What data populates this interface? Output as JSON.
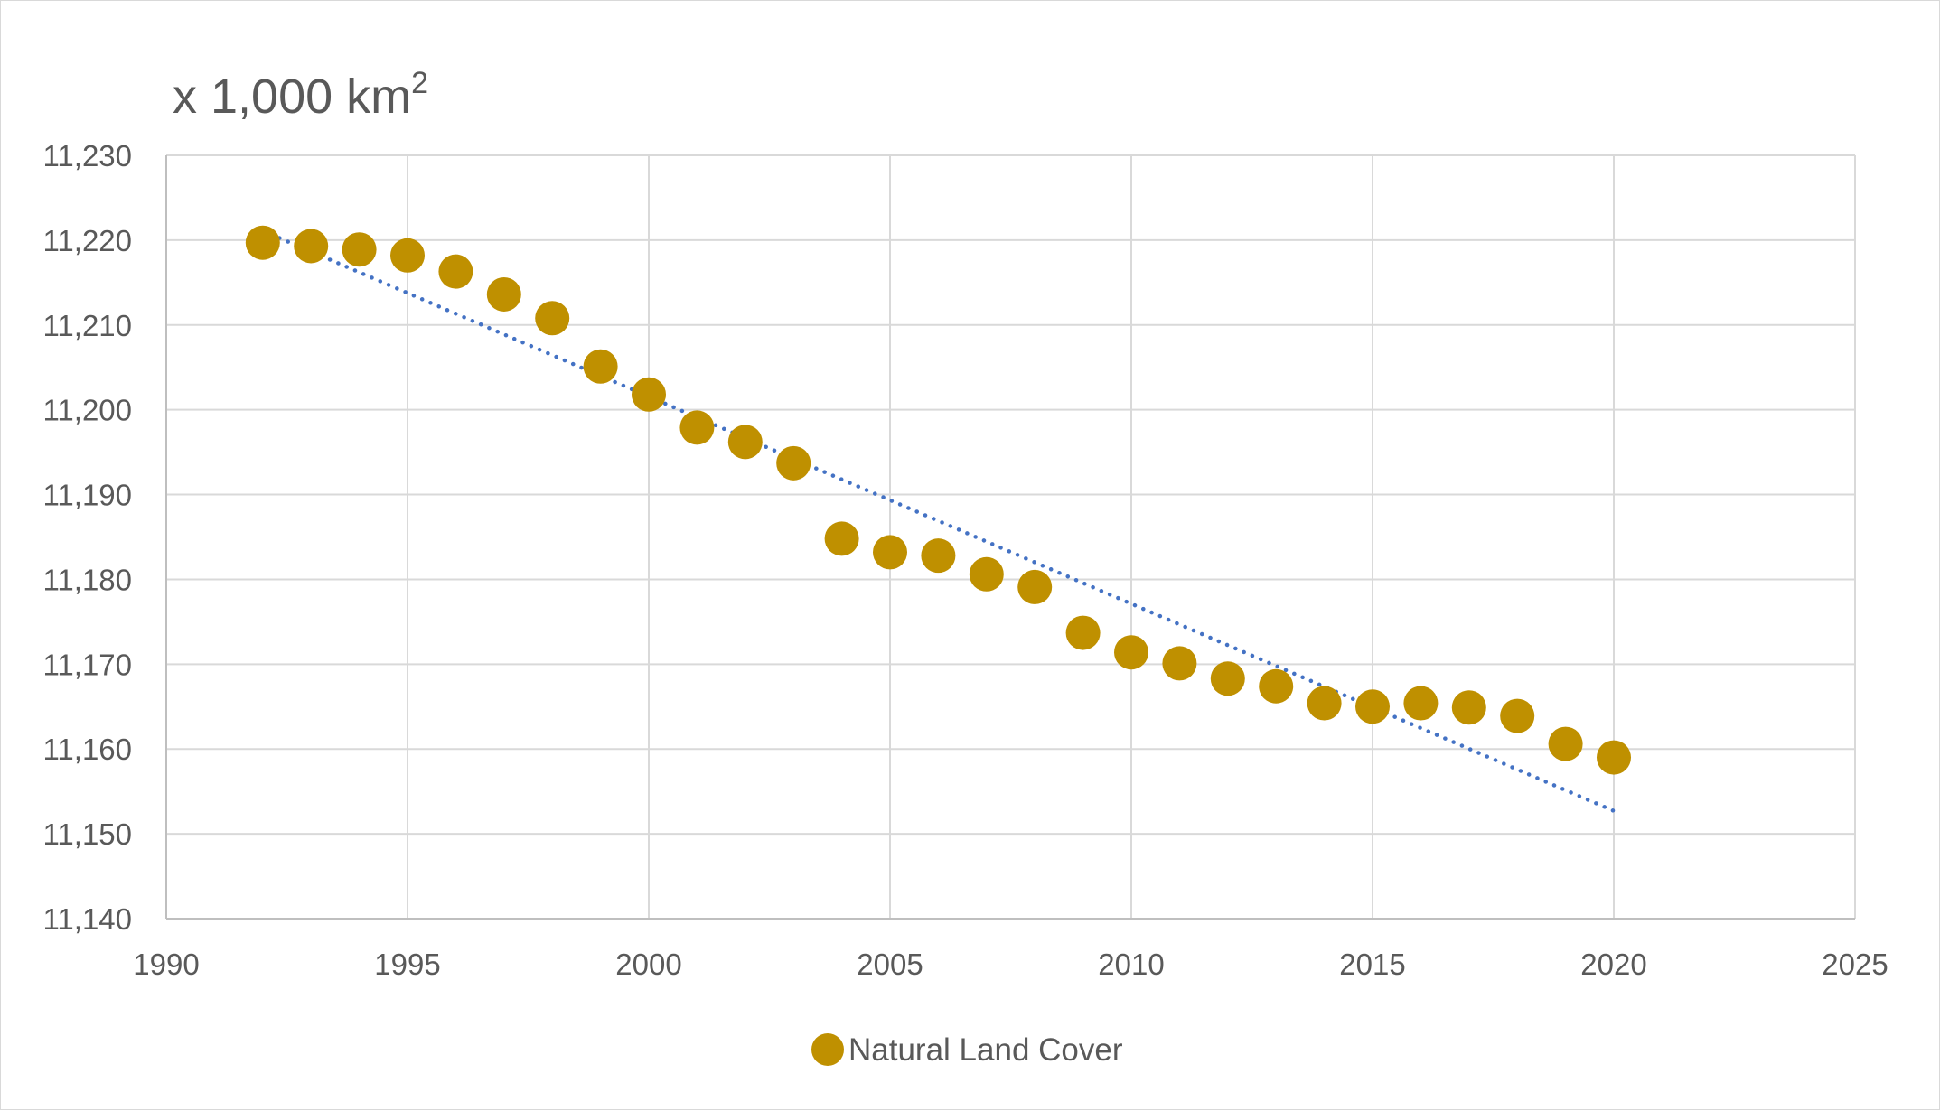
{
  "chart_data": {
    "type": "scatter",
    "unit_label": "x 1,000 km",
    "unit_superscript": "2",
    "xlim": [
      1990,
      2025
    ],
    "ylim": [
      11140,
      11230
    ],
    "x_ticks": [
      "1990",
      "1995",
      "2000",
      "2005",
      "2010",
      "2015",
      "2020",
      "2025"
    ],
    "y_ticks": [
      "11,140",
      "11,150",
      "11,160",
      "11,170",
      "11,180",
      "11,190",
      "11,200",
      "11,210",
      "11,220",
      "11,230"
    ],
    "grid": true,
    "legend_position": "bottom",
    "series": [
      {
        "name": "Natural Land Cover",
        "color": "#bf9000",
        "x": [
          1992,
          1993,
          1994,
          1995,
          1996,
          1997,
          1998,
          1999,
          2000,
          2001,
          2002,
          2003,
          2004,
          2005,
          2006,
          2007,
          2008,
          2009,
          2010,
          2011,
          2012,
          2013,
          2014,
          2015,
          2016,
          2017,
          2018,
          2019,
          2020
        ],
        "y": [
          11219.7,
          11219.3,
          11218.9,
          11218.2,
          11216.3,
          11213.6,
          11210.8,
          11205.1,
          11201.8,
          11197.9,
          11196.2,
          11193.7,
          11184.8,
          11183.2,
          11182.8,
          11180.6,
          11179.1,
          11173.7,
          11171.4,
          11170.1,
          11168.3,
          11167.4,
          11165.4,
          11165.0,
          11165.4,
          11164.9,
          11163.9,
          11160.6,
          11159.0
        ]
      }
    ],
    "trendline": {
      "type": "linear",
      "style": "dotted",
      "color": "#4472c4",
      "x": [
        1992,
        2020
      ],
      "y": [
        11221.1,
        11152.7
      ]
    }
  }
}
